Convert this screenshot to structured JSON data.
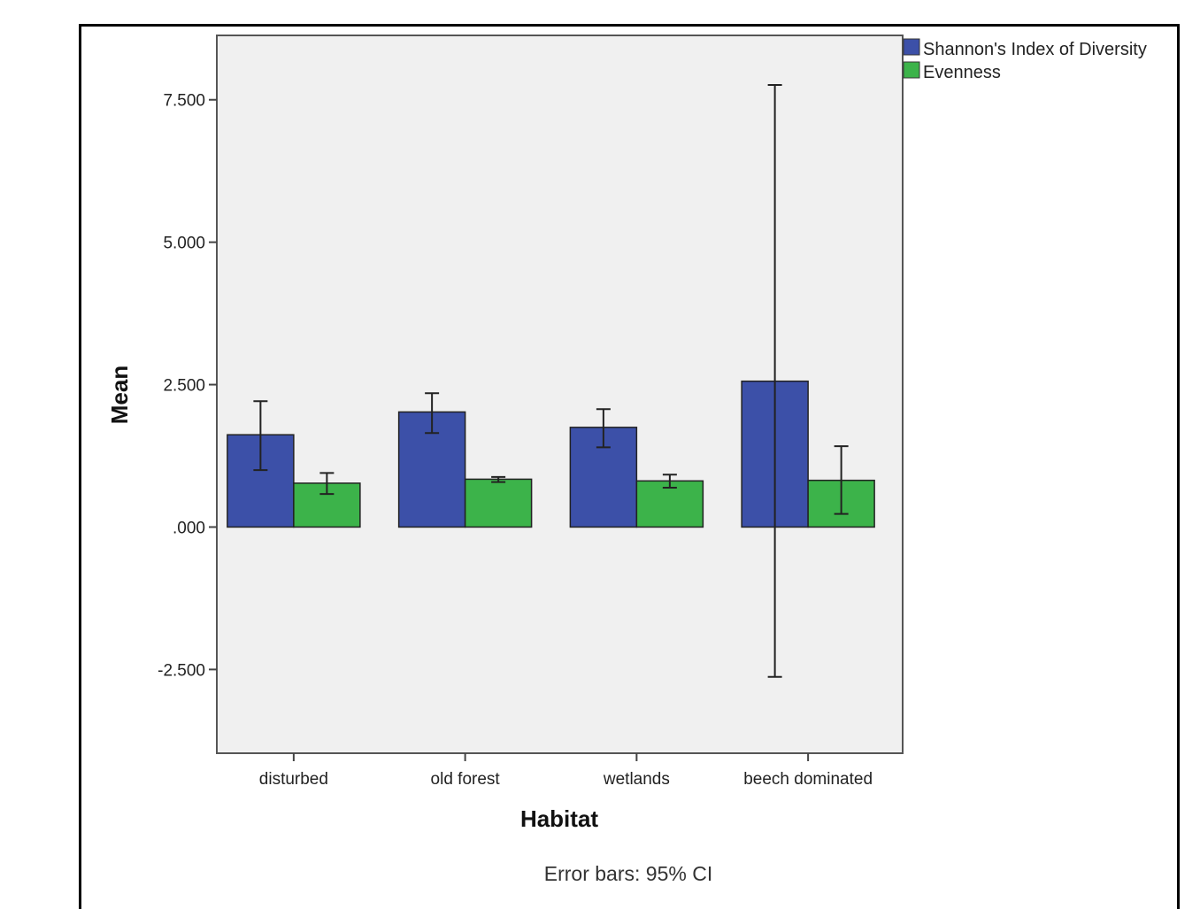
{
  "chart_data": {
    "type": "bar",
    "categories": [
      "disturbed",
      "old forest",
      "wetlands",
      "beech dominated"
    ],
    "series": [
      {
        "name": "Shannon's Index of Diversity",
        "color": "#3c50a8",
        "values": [
          1.62,
          2.02,
          1.75,
          2.56
        ],
        "ci_low": [
          1.0,
          1.65,
          1.4,
          -2.63
        ],
        "ci_high": [
          2.21,
          2.35,
          2.07,
          7.76
        ]
      },
      {
        "name": "Evenness",
        "color": "#3cb34a",
        "values": [
          0.77,
          0.84,
          0.81,
          0.82
        ],
        "ci_low": [
          0.58,
          0.79,
          0.69,
          0.23
        ],
        "ci_high": [
          0.95,
          0.88,
          0.92,
          1.42
        ]
      }
    ],
    "xlabel": "Habitat",
    "ylabel": "Mean",
    "ylim": [
      -3.97,
      8.63
    ],
    "yticks": [
      -2.5,
      0,
      2.5,
      5,
      7.5
    ],
    "ytick_labels": [
      "-2.500",
      ".000",
      "2.500",
      "5.000",
      "7.500"
    ],
    "legend_position": "top-right",
    "grid": false,
    "plot_background": "#f0f0f0",
    "footnote": "Error bars: 95% CI"
  }
}
